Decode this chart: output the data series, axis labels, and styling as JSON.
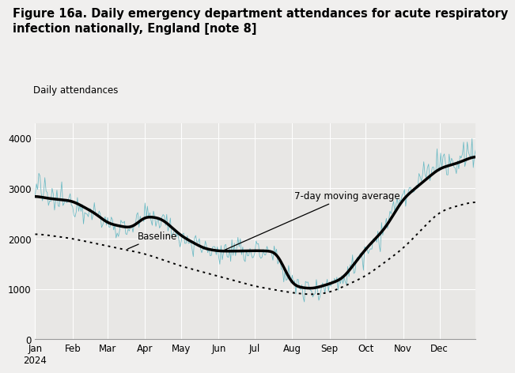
{
  "title_line1": "Figure 16a. Daily emergency department attendances for acute respiratory",
  "title_line2": "infection nationally, England [note 8]",
  "ylabel": "Daily attendances",
  "xlabel_months": [
    "Jan\n2024",
    "Feb",
    "Mar",
    "Apr",
    "May",
    "Jun",
    "Jul",
    "Aug",
    "Sep",
    "Oct",
    "Nov",
    "Dec"
  ],
  "ylim": [
    0,
    4300
  ],
  "yticks": [
    0,
    1000,
    2000,
    3000,
    4000
  ],
  "fig_bg": "#f0efee",
  "plot_bg": "#e8e7e5",
  "daily_color": "#5ab4c0",
  "moving_avg_color": "#000000",
  "baseline_color": "#000000",
  "vgrid_color": "#ffffff",
  "hgrid_color": "#ffffff",
  "annotation_7day": "7-day moving average",
  "annotation_baseline": "Baseline",
  "title_fontsize": 10.5,
  "label_fontsize": 8.5,
  "tick_fontsize": 8.5
}
